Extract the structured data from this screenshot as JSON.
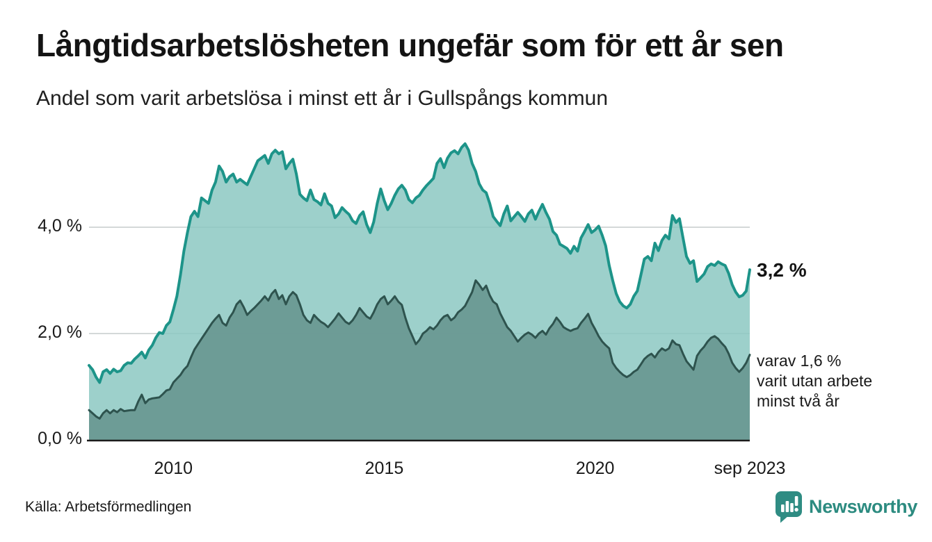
{
  "header": {
    "title": "Långtidsarbetslösheten ungefär som för ett år sen",
    "subtitle": "Andel som varit arbetslösa i minst ett år i Gullspångs kommun"
  },
  "chart": {
    "y_ticks": [
      {
        "label": "4,0 %",
        "value": 4.0
      },
      {
        "label": "2,0 %",
        "value": 2.0
      },
      {
        "label": "0,0 %",
        "value": 0.0
      }
    ],
    "x_ticks": [
      {
        "label": "2010",
        "year": 2010.0
      },
      {
        "label": "2015",
        "year": 2015.0
      },
      {
        "label": "2020",
        "year": 2020.0
      },
      {
        "label": "sep 2023",
        "year": 2023.667
      }
    ]
  },
  "annotations": {
    "latest_total": "3,2 %",
    "secondary_line1": "varav 1,6 %",
    "secondary_line2": "varit utan arbete",
    "secondary_line3": "minst två år"
  },
  "footer": {
    "source": "Källa: Arbetsförmedlingen",
    "brand": "Newsworthy"
  },
  "colors": {
    "line_total": "#1d9489",
    "line_two_year": "#2e534e",
    "fill_total": "rgba(137,199,192,0.83)",
    "fill_two_year": "rgba(104,150,144,0.9)",
    "gridline": "#d4d8d8",
    "axis": "#1b1b1b",
    "brand_teal": "#2f8c83"
  },
  "chart_data": {
    "type": "area",
    "title": "Långtidsarbetslösheten ungefär som för ett år sen",
    "subtitle": "Andel som varit arbetslösa i minst ett år i Gullspångs kommun",
    "source": "Källa: Arbetsförmedlingen",
    "x_unit": "year (monthly values)",
    "x_start": 2008.0,
    "x_step_years": 0.0833333,
    "x_end_label": "sep 2023",
    "ylim": [
      0,
      5.8
    ],
    "y_ticks": [
      "4,0 %",
      "2,0 %",
      "0,0 %"
    ],
    "x_ticks": [
      "2010",
      "2015",
      "2020",
      "sep 2023"
    ],
    "legend_position": "right-edge annotations",
    "grid": "horizontal only",
    "series": [
      {
        "name": "Andel arbetslösa minst ett år",
        "latest_label": "3,2 %",
        "latest_value": 3.2,
        "values": [
          1.4,
          1.32,
          1.18,
          1.08,
          1.28,
          1.32,
          1.25,
          1.33,
          1.28,
          1.3,
          1.4,
          1.45,
          1.44,
          1.52,
          1.58,
          1.65,
          1.54,
          1.69,
          1.78,
          1.92,
          2.02,
          2.0,
          2.15,
          2.22,
          2.45,
          2.7,
          3.1,
          3.55,
          3.9,
          4.2,
          4.3,
          4.2,
          4.55,
          4.5,
          4.45,
          4.7,
          4.85,
          5.15,
          5.05,
          4.85,
          4.95,
          5.0,
          4.85,
          4.9,
          4.85,
          4.8,
          4.95,
          5.1,
          5.25,
          5.3,
          5.35,
          5.2,
          5.38,
          5.45,
          5.38,
          5.42,
          5.1,
          5.2,
          5.28,
          5.0,
          4.62,
          4.55,
          4.5,
          4.7,
          4.52,
          4.48,
          4.42,
          4.63,
          4.45,
          4.4,
          4.18,
          4.25,
          4.37,
          4.3,
          4.24,
          4.12,
          4.07,
          4.22,
          4.29,
          4.05,
          3.9,
          4.1,
          4.45,
          4.72,
          4.5,
          4.33,
          4.45,
          4.6,
          4.72,
          4.79,
          4.7,
          4.52,
          4.46,
          4.55,
          4.6,
          4.7,
          4.78,
          4.85,
          4.92,
          5.2,
          5.29,
          5.12,
          5.3,
          5.4,
          5.44,
          5.38,
          5.5,
          5.57,
          5.45,
          5.2,
          5.05,
          4.82,
          4.7,
          4.65,
          4.45,
          4.2,
          4.11,
          4.03,
          4.25,
          4.4,
          4.12,
          4.2,
          4.28,
          4.2,
          4.11,
          4.25,
          4.32,
          4.15,
          4.3,
          4.43,
          4.28,
          4.15,
          3.92,
          3.85,
          3.68,
          3.64,
          3.6,
          3.51,
          3.64,
          3.55,
          3.8,
          3.92,
          4.05,
          3.9,
          3.95,
          4.02,
          3.85,
          3.65,
          3.28,
          3.0,
          2.75,
          2.6,
          2.52,
          2.48,
          2.55,
          2.7,
          2.8,
          3.1,
          3.4,
          3.45,
          3.37,
          3.7,
          3.56,
          3.75,
          3.85,
          3.78,
          4.22,
          4.09,
          4.16,
          3.8,
          3.45,
          3.32,
          3.37,
          2.98,
          3.05,
          3.12,
          3.26,
          3.31,
          3.28,
          3.35,
          3.31,
          3.28,
          3.13,
          2.92,
          2.78,
          2.69,
          2.72,
          2.8,
          3.2
        ]
      },
      {
        "name": "Varav utan arbete minst två år",
        "latest_label": "1,6 %",
        "latest_value": 1.6,
        "values": [
          0.56,
          0.5,
          0.44,
          0.4,
          0.5,
          0.56,
          0.5,
          0.56,
          0.52,
          0.58,
          0.54,
          0.55,
          0.56,
          0.56,
          0.72,
          0.85,
          0.69,
          0.76,
          0.78,
          0.79,
          0.8,
          0.86,
          0.93,
          0.95,
          1.08,
          1.15,
          1.22,
          1.32,
          1.39,
          1.55,
          1.7,
          1.8,
          1.9,
          2.0,
          2.1,
          2.2,
          2.28,
          2.35,
          2.2,
          2.15,
          2.3,
          2.4,
          2.55,
          2.62,
          2.5,
          2.35,
          2.42,
          2.48,
          2.55,
          2.62,
          2.7,
          2.62,
          2.75,
          2.82,
          2.65,
          2.72,
          2.55,
          2.7,
          2.78,
          2.72,
          2.55,
          2.35,
          2.25,
          2.2,
          2.35,
          2.28,
          2.22,
          2.18,
          2.12,
          2.2,
          2.28,
          2.38,
          2.3,
          2.22,
          2.18,
          2.25,
          2.35,
          2.48,
          2.4,
          2.32,
          2.28,
          2.4,
          2.55,
          2.65,
          2.7,
          2.55,
          2.62,
          2.7,
          2.6,
          2.54,
          2.3,
          2.1,
          1.95,
          1.8,
          1.88,
          2.0,
          2.05,
          2.12,
          2.08,
          2.15,
          2.25,
          2.32,
          2.35,
          2.25,
          2.3,
          2.4,
          2.45,
          2.52,
          2.65,
          2.78,
          3.0,
          2.92,
          2.82,
          2.9,
          2.72,
          2.6,
          2.55,
          2.38,
          2.25,
          2.12,
          2.05,
          1.95,
          1.85,
          1.92,
          1.98,
          2.02,
          1.98,
          1.92,
          2.0,
          2.05,
          1.98,
          2.1,
          2.18,
          2.3,
          2.22,
          2.12,
          2.08,
          2.05,
          2.08,
          2.1,
          2.2,
          2.28,
          2.37,
          2.2,
          2.08,
          1.95,
          1.85,
          1.78,
          1.72,
          1.45,
          1.35,
          1.28,
          1.22,
          1.18,
          1.22,
          1.28,
          1.32,
          1.42,
          1.52,
          1.58,
          1.62,
          1.55,
          1.65,
          1.72,
          1.68,
          1.72,
          1.87,
          1.8,
          1.78,
          1.62,
          1.48,
          1.4,
          1.32,
          1.58,
          1.68,
          1.75,
          1.85,
          1.92,
          1.95,
          1.9,
          1.82,
          1.75,
          1.62,
          1.45,
          1.35,
          1.28,
          1.35,
          1.45,
          1.6
        ]
      }
    ]
  }
}
